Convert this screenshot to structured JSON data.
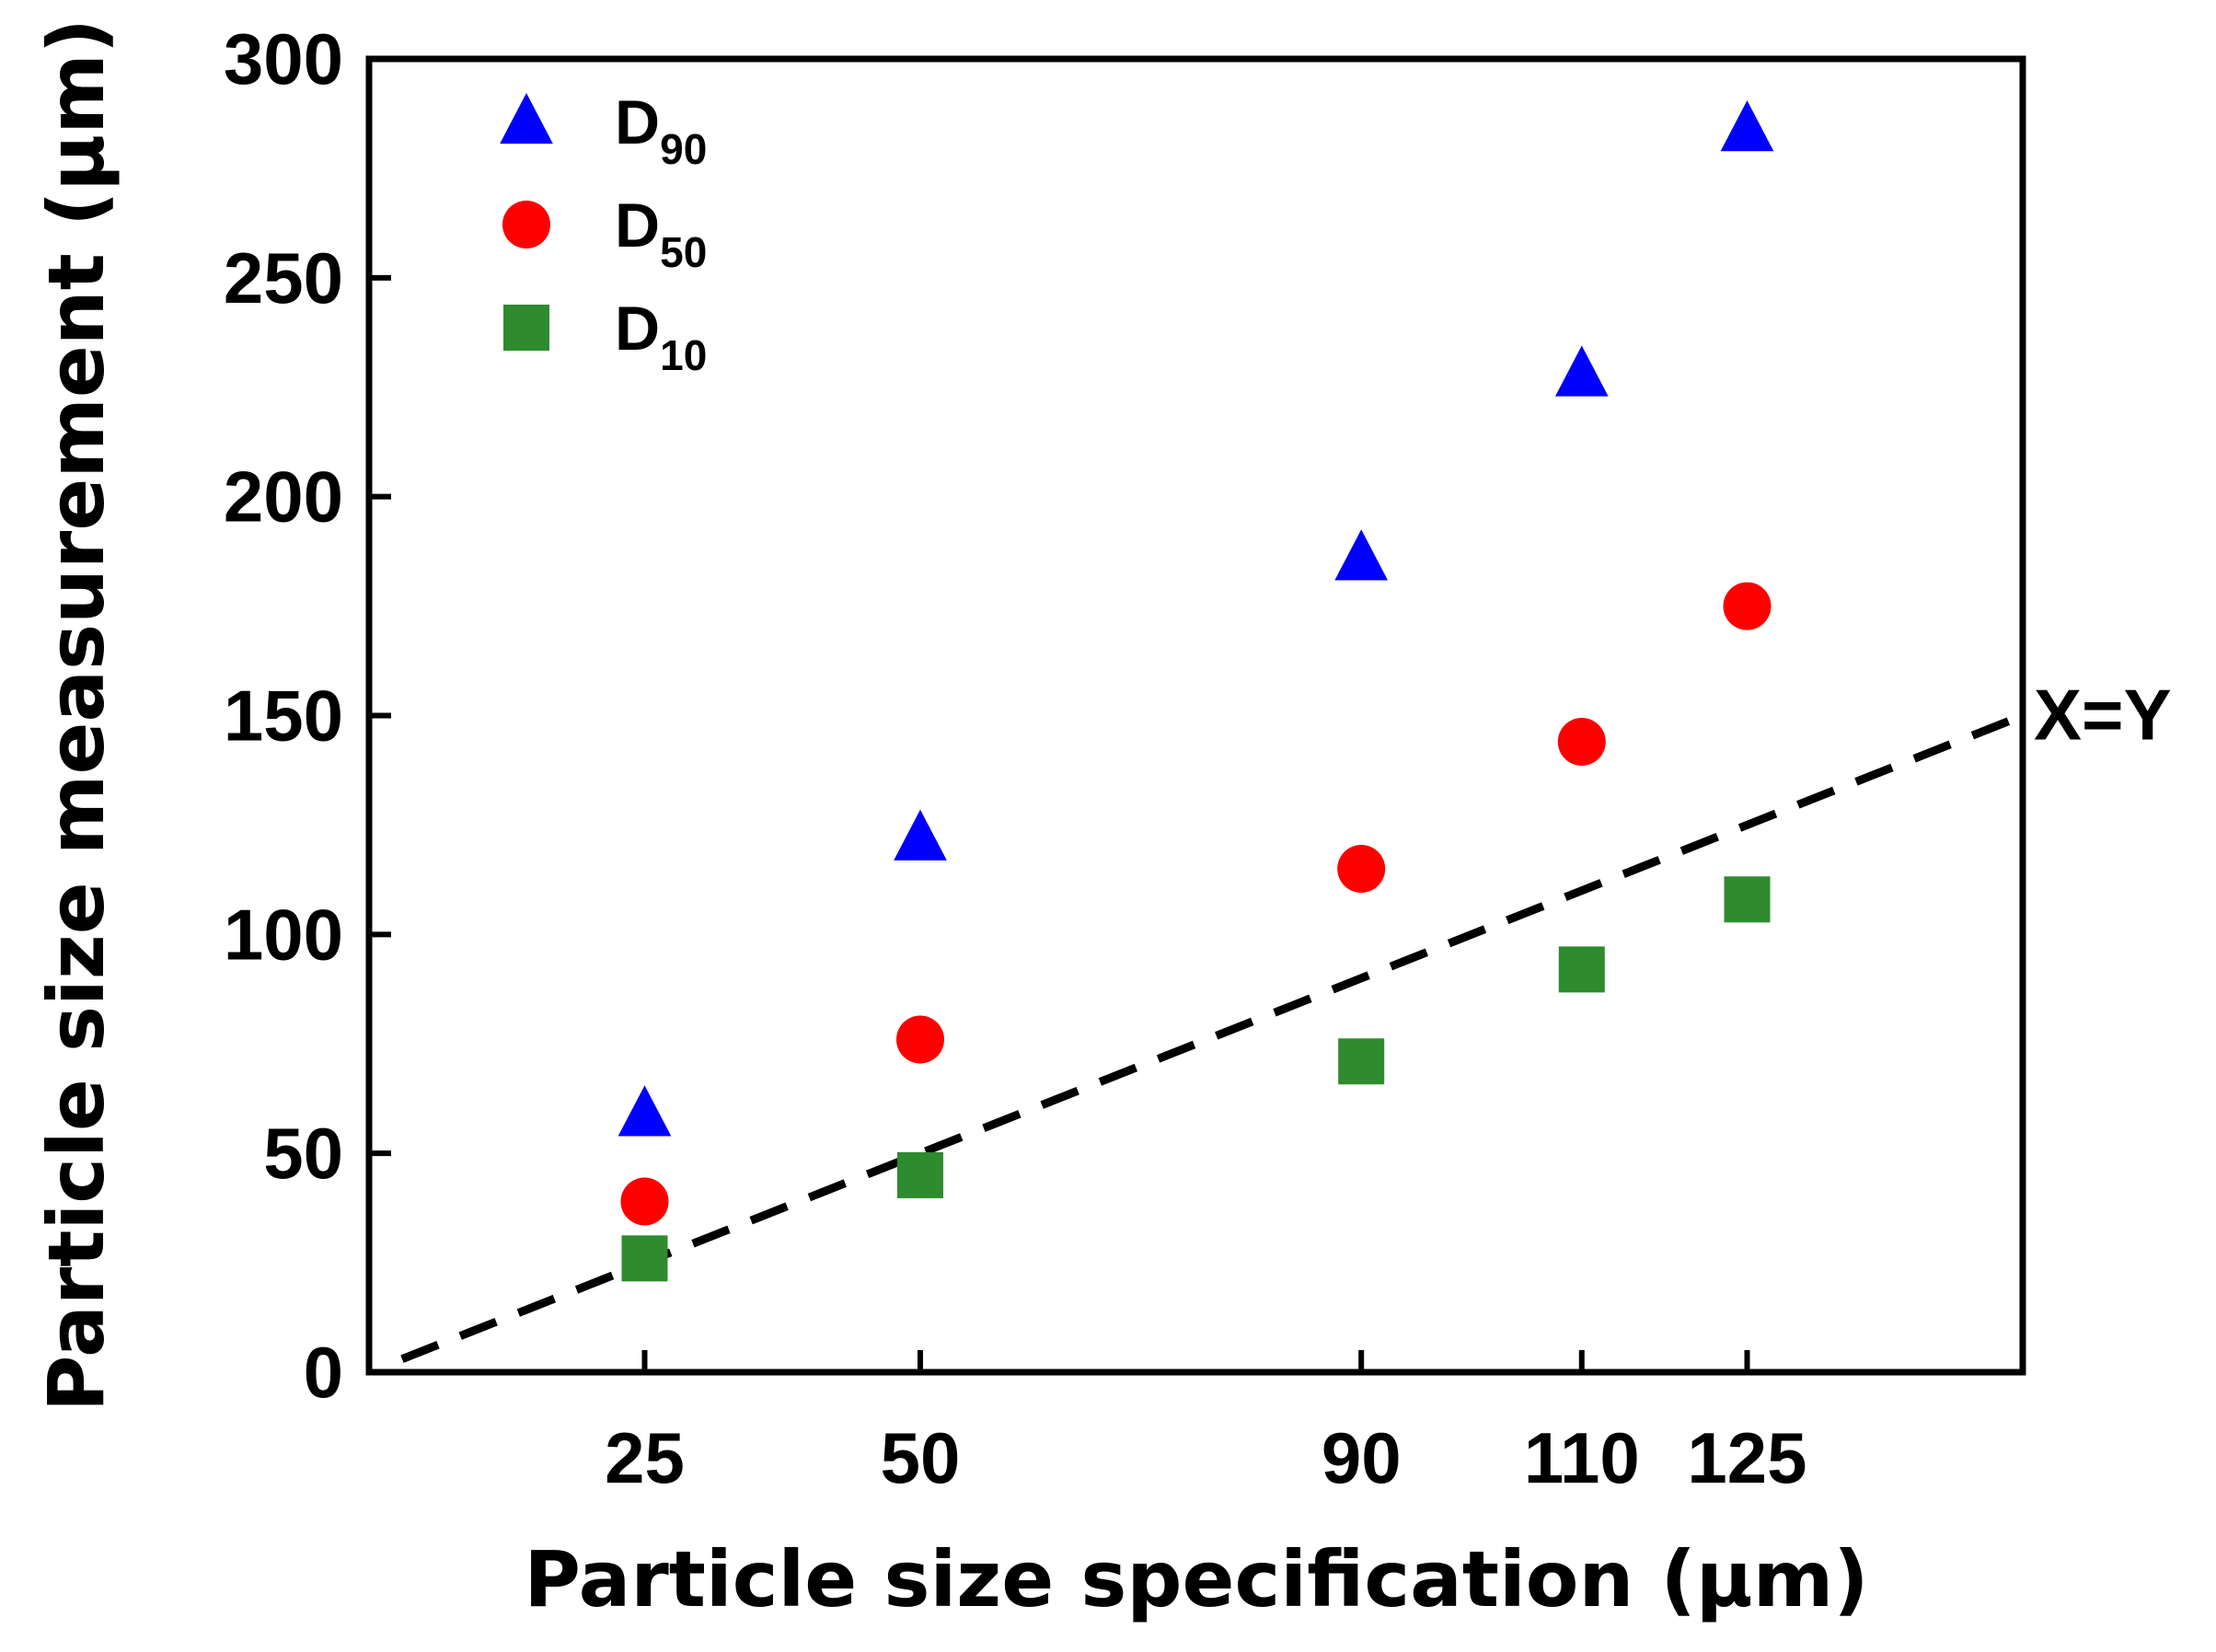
{
  "chart_data": {
    "type": "scatter",
    "title": "",
    "xlabel": "Particle size specification (µm)",
    "ylabel": "Particle size measurement (µm)",
    "xlim": [
      0,
      150
    ],
    "ylim": [
      0,
      300
    ],
    "xticks": [
      25,
      50,
      90,
      110,
      125
    ],
    "yticks": [
      0,
      50,
      100,
      150,
      200,
      250,
      300
    ],
    "grid": false,
    "legend_position": "top-left",
    "x": [
      25,
      50,
      90,
      110,
      125
    ],
    "series": [
      {
        "name": "D90",
        "label_main": "D",
        "label_sub": "90",
        "marker": "triangle",
        "color": "#0000ff",
        "values": [
          59,
          122,
          186,
          228,
          284
        ]
      },
      {
        "name": "D50",
        "label_main": "D",
        "label_sub": "50",
        "marker": "circle",
        "color": "#ff0000",
        "values": [
          39,
          76,
          115,
          144,
          175
        ]
      },
      {
        "name": "D10",
        "label_main": "D",
        "label_sub": "10",
        "marker": "square",
        "color": "#2e8b2e",
        "values": [
          26,
          45,
          71,
          92,
          108
        ]
      }
    ],
    "reference_line": {
      "label": "X=Y",
      "slope": 1,
      "intercept": 0,
      "x_range": [
        3,
        150
      ],
      "style": "dashed",
      "color": "#000000"
    }
  }
}
